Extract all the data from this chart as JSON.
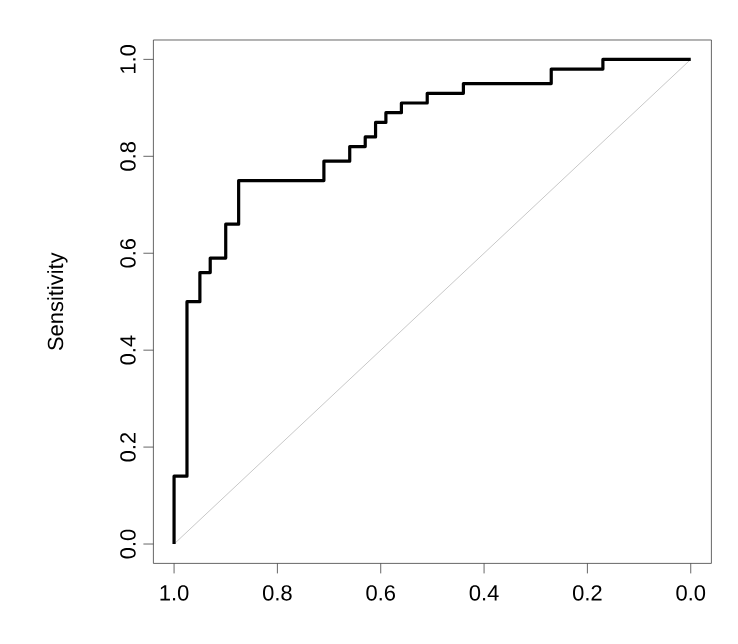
{
  "chart_data": {
    "type": "line",
    "ylabel": "Sensitivity",
    "xlim": [
      1.04,
      -0.04
    ],
    "ylim": [
      -0.04,
      1.04
    ],
    "xticks": [
      {
        "value": 1.0,
        "label": "1.0"
      },
      {
        "value": 0.8,
        "label": "0.8"
      },
      {
        "value": 0.6,
        "label": "0.6"
      },
      {
        "value": 0.4,
        "label": "0.4"
      },
      {
        "value": 0.2,
        "label": "0.2"
      },
      {
        "value": 0.0,
        "label": "0.0"
      }
    ],
    "yticks": [
      {
        "value": 0.0,
        "label": "0.0"
      },
      {
        "value": 0.2,
        "label": "0.2"
      },
      {
        "value": 0.4,
        "label": "0.4"
      },
      {
        "value": 0.6,
        "label": "0.6"
      },
      {
        "value": 0.8,
        "label": "0.8"
      },
      {
        "value": 1.0,
        "label": "1.0"
      }
    ],
    "grid": false,
    "marker": "none",
    "line_style": "solid",
    "series": [
      {
        "color": "#c8c8c8",
        "x": [
          1.0,
          0.0
        ],
        "values": [
          0.0,
          1.0
        ]
      },
      {
        "color": "#000000",
        "x": [
          1.0,
          1.0,
          0.975,
          0.975,
          0.95,
          0.95,
          0.93,
          0.93,
          0.9,
          0.9,
          0.875,
          0.875,
          0.71,
          0.71,
          0.66,
          0.66,
          0.63,
          0.63,
          0.61,
          0.61,
          0.59,
          0.59,
          0.56,
          0.56,
          0.51,
          0.51,
          0.44,
          0.44,
          0.27,
          0.27,
          0.17,
          0.17,
          0.0
        ],
        "values": [
          0.0,
          0.14,
          0.14,
          0.5,
          0.5,
          0.56,
          0.56,
          0.59,
          0.59,
          0.66,
          0.66,
          0.75,
          0.75,
          0.79,
          0.79,
          0.82,
          0.82,
          0.84,
          0.84,
          0.87,
          0.87,
          0.89,
          0.89,
          0.91,
          0.91,
          0.93,
          0.93,
          0.95,
          0.95,
          0.98,
          0.98,
          1.0,
          1.0
        ]
      }
    ]
  }
}
